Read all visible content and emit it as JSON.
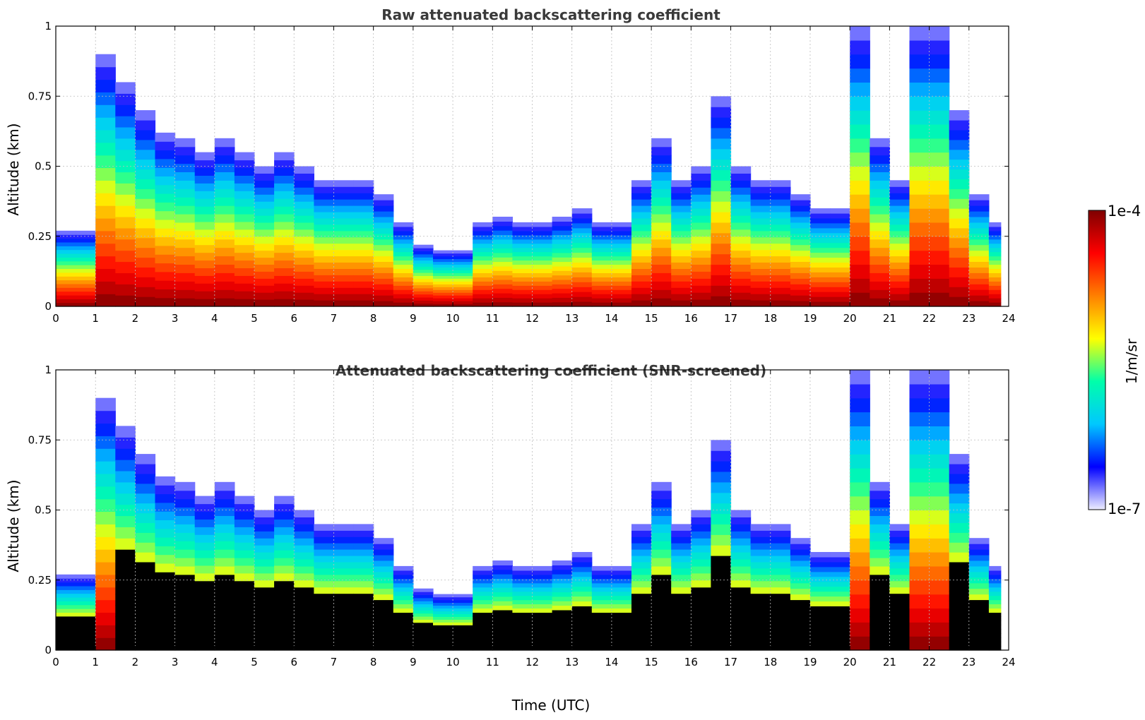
{
  "chart_data": [
    {
      "type": "heatmap",
      "title": "Raw attenuated backscattering coefficient",
      "xlabel": "",
      "ylabel": "Altitude (km)",
      "xlim": [
        0,
        24
      ],
      "ylim": [
        0,
        1
      ],
      "x_ticks": [
        "0",
        "1",
        "2",
        "3",
        "4",
        "5",
        "6",
        "7",
        "8",
        "9",
        "10",
        "11",
        "12",
        "13",
        "14",
        "15",
        "16",
        "17",
        "18",
        "19",
        "20",
        "21",
        "22",
        "23",
        "24"
      ],
      "y_ticks": [
        "0",
        "0.25",
        "0.5",
        "0.75",
        "1"
      ],
      "grid": true,
      "time_utc": [
        0,
        0.5,
        1,
        1.5,
        2,
        2.5,
        3,
        3.5,
        4,
        4.5,
        5,
        5.5,
        6,
        6.5,
        7,
        7.5,
        8,
        8.5,
        9,
        9.5,
        10,
        10.5,
        11,
        11.5,
        12,
        12.5,
        13,
        13.5,
        14,
        14.5,
        15,
        15.5,
        16,
        16.5,
        17,
        17.5,
        18,
        18.5,
        19,
        19.5,
        20,
        20.5,
        21,
        21.5,
        22,
        22.5,
        23,
        23.5
      ],
      "signal_top_km": [
        0.27,
        0.27,
        0.9,
        0.8,
        0.7,
        0.62,
        0.6,
        0.55,
        0.6,
        0.55,
        0.5,
        0.55,
        0.5,
        0.45,
        0.45,
        0.45,
        0.4,
        0.3,
        0.22,
        0.2,
        0.2,
        0.3,
        0.32,
        0.3,
        0.3,
        0.32,
        0.35,
        0.3,
        0.3,
        0.45,
        0.6,
        0.45,
        0.5,
        0.75,
        0.5,
        0.45,
        0.45,
        0.4,
        0.35,
        0.35,
        1.0,
        0.6,
        0.45,
        1.0,
        1.0,
        0.7,
        0.4,
        0.3
      ]
    },
    {
      "type": "heatmap",
      "title": "Attenuated backscattering coefficient (SNR-screened)",
      "xlabel": "Time (UTC)",
      "ylabel": "Altitude (km)",
      "xlim": [
        0,
        24
      ],
      "ylim": [
        0,
        1
      ],
      "x_ticks": [
        "0",
        "1",
        "2",
        "3",
        "4",
        "5",
        "6",
        "7",
        "8",
        "9",
        "10",
        "11",
        "12",
        "13",
        "14",
        "15",
        "16",
        "17",
        "18",
        "19",
        "20",
        "21",
        "22",
        "23",
        "24"
      ],
      "y_ticks": [
        "0",
        "0.25",
        "0.5",
        "0.75",
        "1"
      ],
      "grid": true,
      "time_utc": [
        0,
        0.5,
        1,
        1.5,
        2,
        2.5,
        3,
        3.5,
        4,
        4.5,
        5,
        5.5,
        6,
        6.5,
        7,
        7.5,
        8,
        8.5,
        9,
        9.5,
        10,
        10.5,
        11,
        11.5,
        12,
        12.5,
        13,
        13.5,
        14,
        14.5,
        15,
        15.5,
        16,
        16.5,
        17,
        17.5,
        18,
        18.5,
        19,
        19.5,
        20,
        20.5,
        21,
        21.5,
        22,
        22.5,
        23,
        23.5
      ],
      "signal_top_km": [
        0.27,
        0.27,
        0.9,
        0.8,
        0.7,
        0.62,
        0.6,
        0.55,
        0.6,
        0.55,
        0.5,
        0.55,
        0.5,
        0.45,
        0.45,
        0.45,
        0.4,
        0.3,
        0.22,
        0.2,
        0.2,
        0.3,
        0.32,
        0.3,
        0.3,
        0.32,
        0.35,
        0.3,
        0.3,
        0.45,
        0.6,
        0.45,
        0.5,
        0.75,
        0.5,
        0.45,
        0.45,
        0.4,
        0.35,
        0.35,
        1.0,
        0.6,
        0.45,
        1.0,
        1.0,
        0.7,
        0.4,
        0.3
      ]
    }
  ],
  "colorbar": {
    "min_label": "1e-7",
    "max_label": "1e-4",
    "unit_label": "1/m/sr",
    "colors": [
      "#eeeeff",
      "#0000ff",
      "#00c8ff",
      "#00ffaa",
      "#ffff00",
      "#ff8000",
      "#ff0000",
      "#7f0000"
    ]
  }
}
